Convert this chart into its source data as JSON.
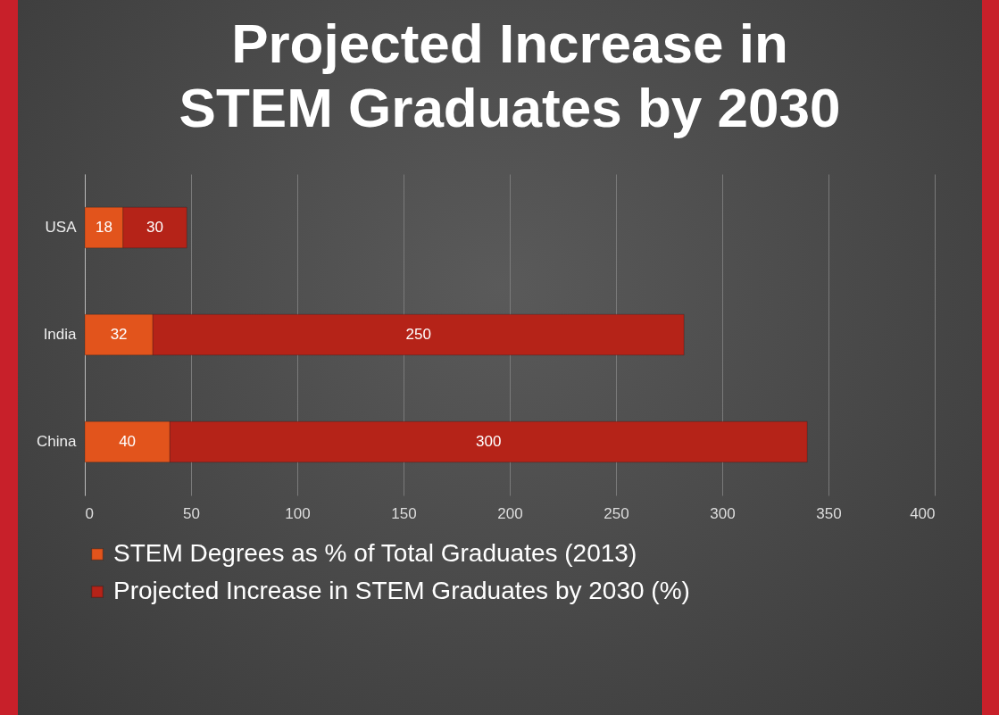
{
  "chart_data": {
    "type": "bar",
    "orientation": "horizontal",
    "stacked": true,
    "title": "Projected Increase in STEM Graduates by 2030",
    "categories": [
      "USA",
      "India",
      "China"
    ],
    "series": [
      {
        "name": "STEM Degrees as % of Total Graduates (2013)",
        "color": "#e2541c",
        "values": [
          18,
          32,
          40
        ]
      },
      {
        "name": "Projected Increase in STEM Graduates by 2030 (%)",
        "color": "#b52318",
        "values": [
          30,
          250,
          300
        ]
      }
    ],
    "xlim": [
      0,
      400
    ],
    "xticks": [
      0,
      50,
      100,
      150,
      200,
      250,
      300,
      350,
      400
    ],
    "grid": "x",
    "legend": "bottom",
    "data_labels": true
  }
}
